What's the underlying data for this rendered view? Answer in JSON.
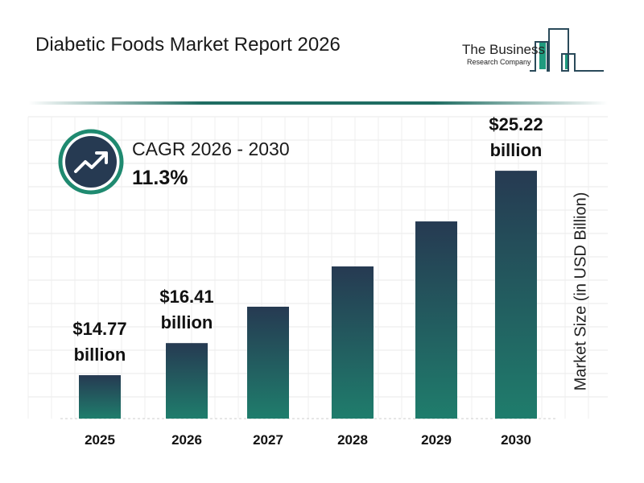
{
  "header": {
    "title": "Diabetic Foods Market Report 2026"
  },
  "logo": {
    "line1": "The Business",
    "line2": "Research Company"
  },
  "cagr": {
    "label": "CAGR 2026 - 2030",
    "value": "11.3%",
    "icon": "trending-up-icon"
  },
  "colors": {
    "bar_top": "#263a52",
    "bar_bottom": "#1f7d6c",
    "accent": "#1f8a70",
    "icon_bg": "#263a52"
  },
  "chart_data": {
    "type": "bar",
    "categories": [
      "2025",
      "2026",
      "2027",
      "2028",
      "2029",
      "2030"
    ],
    "values": [
      14.77,
      16.41,
      18.27,
      20.33,
      22.63,
      25.22
    ],
    "data_labels": [
      {
        "index": 0,
        "amount": "$14.77",
        "unit": "billion"
      },
      {
        "index": 1,
        "amount": "$16.41",
        "unit": "billion"
      },
      {
        "index": 5,
        "amount": "$25.22",
        "unit": "billion"
      }
    ],
    "ylabel": "Market Size (in USD Billion)",
    "grid": true
  }
}
